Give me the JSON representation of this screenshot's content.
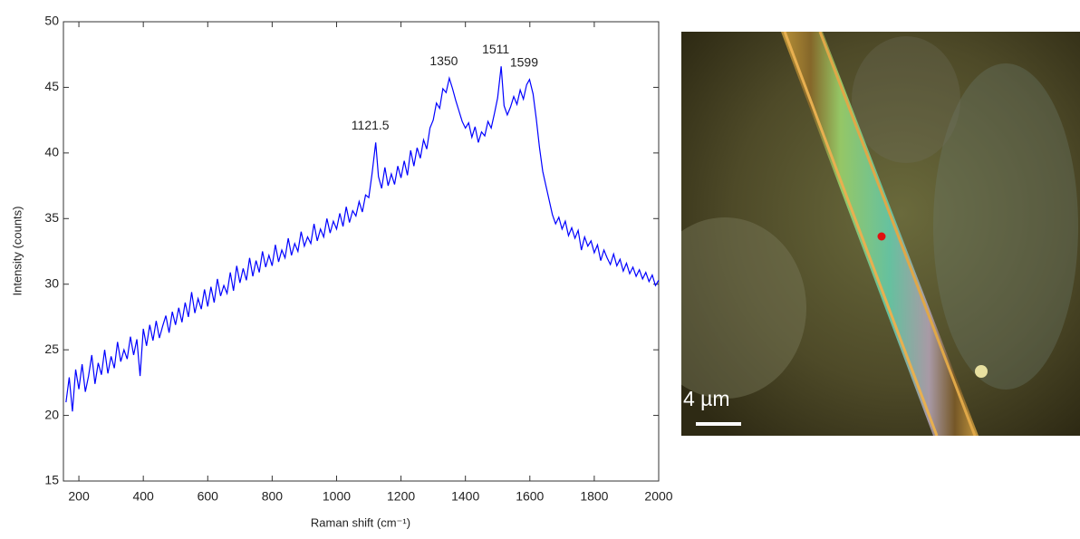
{
  "chart_data": {
    "type": "line",
    "ylabel": "Intensity (counts)",
    "xlabel": "Raman shift (cm⁻¹)",
    "x": [
      160,
      170,
      180,
      190,
      200,
      210,
      220,
      230,
      240,
      250,
      260,
      270,
      280,
      290,
      300,
      310,
      320,
      330,
      340,
      350,
      360,
      370,
      380,
      390,
      400,
      410,
      420,
      430,
      440,
      450,
      460,
      470,
      480,
      490,
      500,
      510,
      520,
      530,
      540,
      550,
      560,
      570,
      580,
      590,
      600,
      610,
      620,
      630,
      640,
      650,
      660,
      670,
      680,
      690,
      700,
      710,
      720,
      730,
      740,
      750,
      760,
      770,
      780,
      790,
      800,
      810,
      820,
      830,
      840,
      850,
      860,
      870,
      880,
      890,
      900,
      910,
      920,
      930,
      940,
      950,
      960,
      970,
      980,
      990,
      1000,
      1010,
      1020,
      1030,
      1040,
      1050,
      1060,
      1070,
      1080,
      1090,
      1100,
      1110,
      1121.5,
      1130,
      1140,
      1150,
      1160,
      1170,
      1180,
      1190,
      1200,
      1210,
      1220,
      1230,
      1240,
      1250,
      1260,
      1270,
      1280,
      1290,
      1300,
      1310,
      1320,
      1330,
      1340,
      1350,
      1360,
      1370,
      1380,
      1390,
      1400,
      1410,
      1420,
      1430,
      1440,
      1450,
      1460,
      1470,
      1480,
      1490,
      1500,
      1511,
      1520,
      1530,
      1540,
      1550,
      1560,
      1570,
      1580,
      1590,
      1599,
      1610,
      1620,
      1630,
      1640,
      1650,
      1660,
      1670,
      1680,
      1690,
      1700,
      1710,
      1720,
      1730,
      1740,
      1750,
      1760,
      1770,
      1780,
      1790,
      1800,
      1810,
      1820,
      1830,
      1840,
      1850,
      1860,
      1870,
      1880,
      1890,
      1900,
      1910,
      1920,
      1930,
      1940,
      1950,
      1960,
      1970,
      1980,
      1990,
      2000
    ],
    "values": [
      21.0,
      22.9,
      20.3,
      23.5,
      22.0,
      23.9,
      21.8,
      23.0,
      24.6,
      22.4,
      24.0,
      23.1,
      25.0,
      23.2,
      24.5,
      23.6,
      25.6,
      24.1,
      25.0,
      24.3,
      26.0,
      24.6,
      25.8,
      23.0,
      26.6,
      25.3,
      26.9,
      25.7,
      27.2,
      25.9,
      26.8,
      27.6,
      26.3,
      27.9,
      26.9,
      28.2,
      27.1,
      28.6,
      27.5,
      29.4,
      27.8,
      28.9,
      28.1,
      29.6,
      28.3,
      29.8,
      28.6,
      30.4,
      29.1,
      29.9,
      29.3,
      30.9,
      29.5,
      31.4,
      30.1,
      31.2,
      30.3,
      32.0,
      30.6,
      31.8,
      30.9,
      32.5,
      31.3,
      32.2,
      31.4,
      33.0,
      31.7,
      32.6,
      32.0,
      33.5,
      32.2,
      33.1,
      32.5,
      34.0,
      32.9,
      33.6,
      33.1,
      34.6,
      33.3,
      34.2,
      33.6,
      35.0,
      33.9,
      34.8,
      34.2,
      35.4,
      34.4,
      35.9,
      34.7,
      35.6,
      35.2,
      36.3,
      35.5,
      36.8,
      36.6,
      38.4,
      40.8,
      38.2,
      37.3,
      38.9,
      37.5,
      38.4,
      37.6,
      39.0,
      38.1,
      39.4,
      38.3,
      40.2,
      39.0,
      40.4,
      39.6,
      41.0,
      40.3,
      41.9,
      42.5,
      43.8,
      43.4,
      44.9,
      44.6,
      45.7,
      44.9,
      44.0,
      43.2,
      42.4,
      41.9,
      42.3,
      41.2,
      42.0,
      40.8,
      41.6,
      41.3,
      42.4,
      41.9,
      43.0,
      44.2,
      46.6,
      43.6,
      42.9,
      43.5,
      44.3,
      43.7,
      44.8,
      44.1,
      45.2,
      45.6,
      44.5,
      42.6,
      40.4,
      38.6,
      37.5,
      36.4,
      35.3,
      34.6,
      35.1,
      34.2,
      34.8,
      33.7,
      34.3,
      33.5,
      34.1,
      32.6,
      33.6,
      32.9,
      33.3,
      32.4,
      33.0,
      31.8,
      32.6,
      32.0,
      31.5,
      32.3,
      31.4,
      31.9,
      31.0,
      31.6,
      30.8,
      31.3,
      30.6,
      31.1,
      30.4,
      30.9,
      30.2,
      30.7,
      29.9,
      30.3
    ],
    "color": "#0000ff",
    "peaks": [
      1121.5,
      1350,
      1511,
      1599
    ],
    "xlim": [
      152,
      2000
    ],
    "xticks": [
      200,
      400,
      600,
      800,
      1000,
      1200,
      1400,
      1600,
      1800,
      2000
    ],
    "ylim": [
      15,
      50
    ],
    "yticks": [
      15,
      20,
      25,
      30,
      35,
      40,
      45,
      50
    ],
    "grid": false
  },
  "image": {
    "scale_label": "4 µm"
  }
}
